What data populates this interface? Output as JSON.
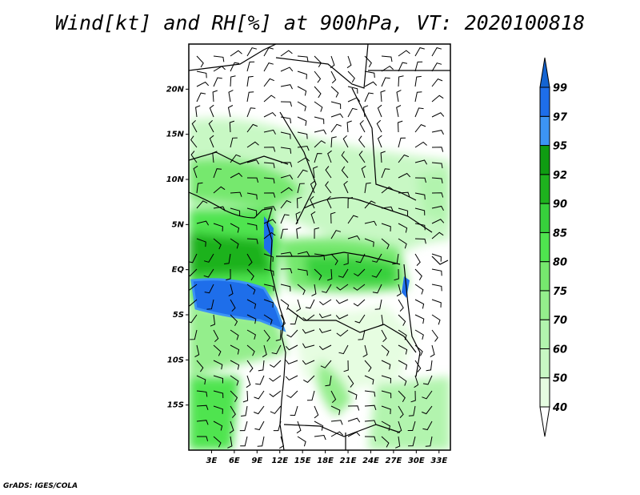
{
  "title": "Wind[kt] and RH[%] at 900hPa, VT: 2020100818",
  "credit": "GrADS: IGES/COLA",
  "map": {
    "lon_range": [
      0,
      34.5
    ],
    "lat_range": [
      -20,
      25
    ],
    "lat_ticks": [
      "20N",
      "15N",
      "10N",
      "5N",
      "EQ",
      "5S",
      "10S",
      "15S"
    ],
    "lat_values": [
      20,
      15,
      10,
      5,
      0,
      -5,
      -10,
      -15
    ],
    "lon_ticks": [
      "3E",
      "6E",
      "9E",
      "12E",
      "15E",
      "18E",
      "21E",
      "24E",
      "27E",
      "30E",
      "33E"
    ],
    "lon_values": [
      3,
      6,
      9,
      12,
      15,
      18,
      21,
      24,
      27,
      30,
      33
    ]
  },
  "colorbar": {
    "labels": [
      "40",
      "50",
      "60",
      "70",
      "75",
      "80",
      "85",
      "90",
      "92",
      "95",
      "97",
      "99"
    ],
    "colors": [
      "#e6fde1",
      "#c8f8c4",
      "#b2f4ae",
      "#94ee8c",
      "#76e86e",
      "#4fe44f",
      "#37d03c",
      "#1eb21e",
      "#0f9c12",
      "#3c94f4",
      "#1e6eea",
      "#1464d2"
    ],
    "below_color": "#ffffff"
  }
}
